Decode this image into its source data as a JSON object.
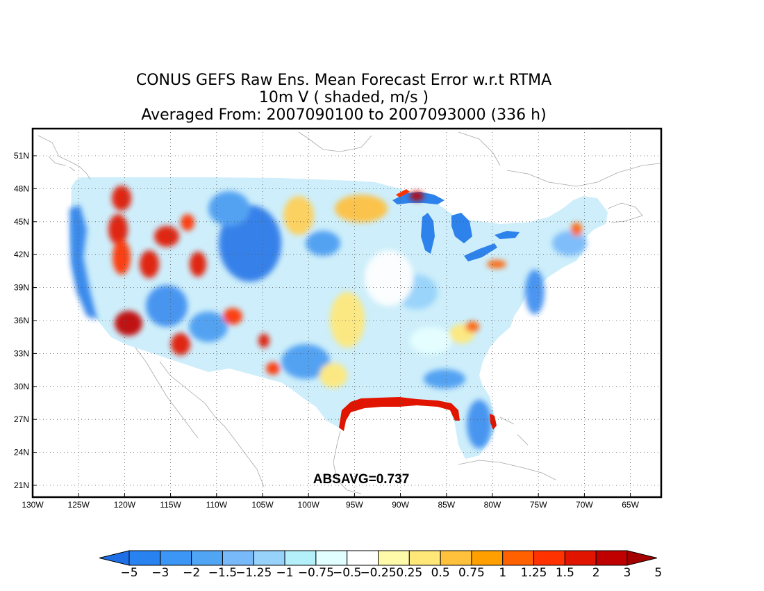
{
  "title": {
    "line1": "CONUS GEFS Raw Ens. Mean Forecast Error w.r.t RTMA",
    "line2": "10m V ( shaded, m/s )",
    "line3": "Averaged From: 2007090100 to 2007093000 (336 h)"
  },
  "map": {
    "lat_labels": [
      "51N",
      "48N",
      "45N",
      "42N",
      "39N",
      "36N",
      "33N",
      "30N",
      "27N",
      "24N",
      "21N"
    ],
    "lon_labels": [
      "130W",
      "125W",
      "120W",
      "115W",
      "110W",
      "105W",
      "100W",
      "95W",
      "90W",
      "85W",
      "80W",
      "75W",
      "70W",
      "65W"
    ],
    "grid": "dotted",
    "annotation": "ABSAVG=0.737"
  },
  "colorbar": {
    "colors": [
      "#1e6ee6",
      "#2882f0",
      "#3c96f5",
      "#50a5f5",
      "#78b9fa",
      "#96d2fa",
      "#b4f0fa",
      "#e1ffff",
      "#ffffff",
      "#fffaaa",
      "#ffe878",
      "#ffc03c",
      "#ffa000",
      "#ff6000",
      "#ff3200",
      "#e11400",
      "#c00000",
      "#a50000"
    ],
    "labels": [
      "−5",
      "−3",
      "−2",
      "−1.5",
      "−1.25",
      "−1",
      "−0.75",
      "−0.5",
      "−0.25",
      "0.25",
      "0.5",
      "0.75",
      "1",
      "1.25",
      "1.5",
      "2",
      "3",
      "5"
    ]
  }
}
